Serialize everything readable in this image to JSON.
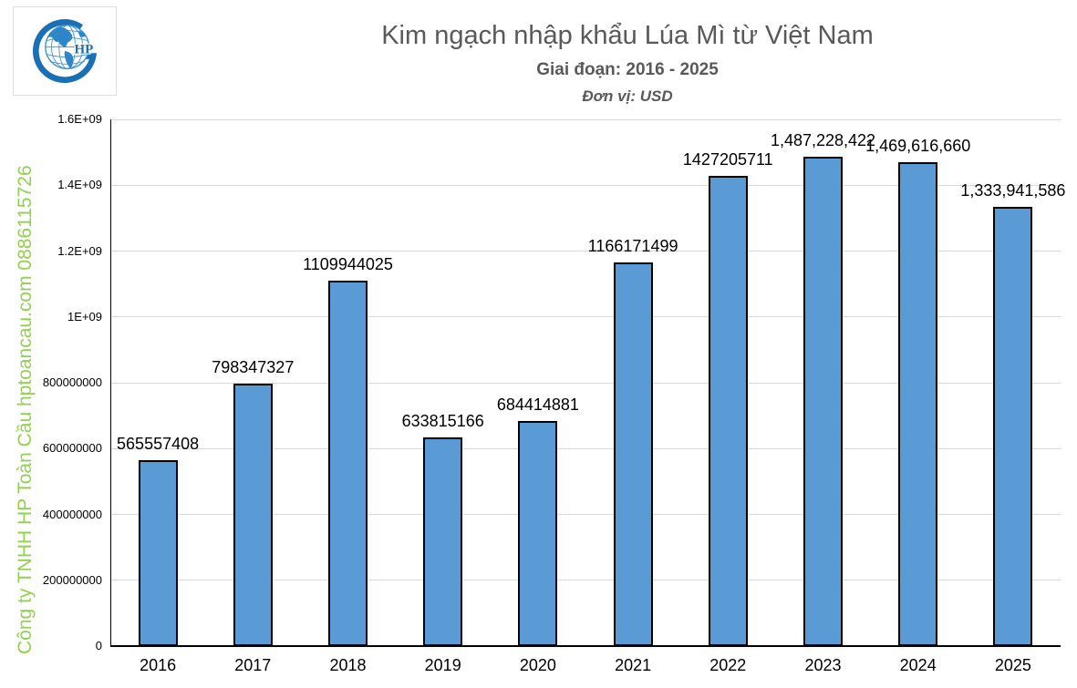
{
  "header": {
    "title": "Kim ngạch nhập khẩu Lúa Mì từ Việt Nam",
    "subtitle": "Giai đoạn: 2016 - 2025",
    "unit": "Đơn vị: USD"
  },
  "logo": {
    "monogram": "HP",
    "color": "#1a6fb5"
  },
  "watermark": {
    "text": "Công ty TNHH HP Toàn Cầu hptoancau.com 0886115726",
    "color": "#92D050"
  },
  "chart_data": {
    "type": "bar",
    "title": "Kim ngạch nhập khẩu Lúa Mì từ Việt Nam",
    "subtitle": "Giai đoạn: 2016 - 2025",
    "unit_label": "Đơn vị: USD",
    "categories": [
      "2016",
      "2017",
      "2018",
      "2019",
      "2020",
      "2021",
      "2022",
      "2023",
      "2024",
      "2025"
    ],
    "values": [
      565557408,
      798347327,
      1109944025,
      633815166,
      684414881,
      1166171499,
      1427205711,
      1487228422,
      1469616660,
      1333941586
    ],
    "value_labels": [
      "565557408",
      "798347327",
      "1109944025",
      "633815166",
      "684414881",
      "1166171499",
      "1427205711",
      "1,487,228,422",
      "1,469,616,660",
      "1,333,941,586"
    ],
    "xlabel": "",
    "ylabel": "",
    "ylim": [
      0,
      1600000000
    ],
    "yticks": {
      "values": [
        0,
        200000000,
        400000000,
        600000000,
        800000000,
        1000000000,
        1200000000,
        1400000000,
        1600000000
      ],
      "labels": [
        "0",
        "200000000",
        "400000000",
        "600000000",
        "800000000",
        "1E+09",
        "1.2E+09",
        "1.4E+09",
        "1.6E+09"
      ]
    },
    "grid": true,
    "legend": false,
    "bar_color": "#5B9BD5",
    "bar_border_color": "#000000",
    "gridline_color": "#D9D9D9",
    "axis_color": "#000000"
  }
}
